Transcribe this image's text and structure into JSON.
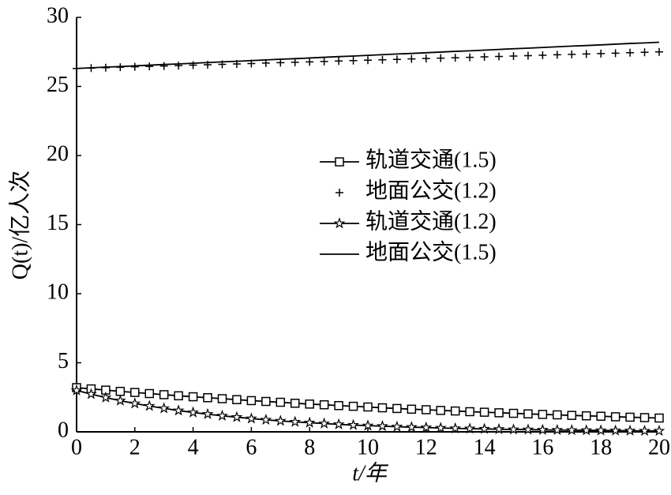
{
  "chart_data": {
    "type": "line",
    "x_label": "t/年",
    "y_label": "Q(t)/亿人次",
    "x": [
      0,
      0.5,
      1,
      1.5,
      2,
      2.5,
      3,
      3.5,
      4,
      4.5,
      5,
      5.5,
      6,
      6.5,
      7,
      7.5,
      8,
      8.5,
      9,
      9.5,
      10,
      10.5,
      11,
      11.5,
      12,
      12.5,
      13,
      13.5,
      14,
      14.5,
      15,
      15.5,
      16,
      16.5,
      17,
      17.5,
      18,
      18.5,
      19,
      19.5,
      20
    ],
    "series": [
      {
        "name": "轨道交通(1.5)",
        "color": "#000000",
        "marker": "square",
        "values": [
          3.2,
          3.11,
          3.02,
          2.93,
          2.85,
          2.77,
          2.69,
          2.61,
          2.54,
          2.47,
          2.4,
          2.33,
          2.26,
          2.2,
          2.14,
          2.07,
          2.01,
          1.96,
          1.9,
          1.85,
          1.8,
          1.74,
          1.69,
          1.64,
          1.6,
          1.55,
          1.51,
          1.46,
          1.42,
          1.38,
          1.34,
          1.3,
          1.26,
          1.23,
          1.19,
          1.16,
          1.13,
          1.09,
          1.06,
          1.03,
          1.0
        ]
      },
      {
        "name": "地面公交(1.2)",
        "color": "#000000",
        "marker": "plus",
        "values": [
          26.3,
          26.33,
          26.36,
          26.39,
          26.42,
          26.45,
          26.48,
          26.51,
          26.54,
          26.57,
          26.6,
          26.63,
          26.66,
          26.69,
          26.72,
          26.75,
          26.78,
          26.81,
          26.84,
          26.87,
          26.9,
          26.93,
          26.96,
          26.99,
          27.02,
          27.05,
          27.08,
          27.11,
          27.14,
          27.17,
          27.2,
          27.23,
          27.26,
          27.29,
          27.32,
          27.35,
          27.38,
          27.41,
          27.44,
          27.47,
          27.5
        ]
      },
      {
        "name": "轨道交通(1.2)",
        "color": "#000000",
        "marker": "star",
        "values": [
          3.0,
          2.73,
          2.48,
          2.26,
          2.05,
          1.87,
          1.7,
          1.54,
          1.4,
          1.28,
          1.16,
          1.06,
          0.96,
          0.87,
          0.79,
          0.72,
          0.66,
          0.6,
          0.54,
          0.49,
          0.45,
          0.41,
          0.37,
          0.34,
          0.31,
          0.28,
          0.25,
          0.23,
          0.21,
          0.19,
          0.17,
          0.16,
          0.14,
          0.13,
          0.12,
          0.11,
          0.1,
          0.09,
          0.08,
          0.07,
          0.07
        ]
      },
      {
        "name": "地面公交(1.5)",
        "color": "#000000",
        "marker": "none",
        "values": [
          26.3,
          26.35,
          26.4,
          26.44,
          26.49,
          26.54,
          26.59,
          26.63,
          26.68,
          26.73,
          26.78,
          26.82,
          26.87,
          26.92,
          26.97,
          27.01,
          27.06,
          27.11,
          27.16,
          27.2,
          27.25,
          27.3,
          27.35,
          27.39,
          27.44,
          27.49,
          27.54,
          27.58,
          27.63,
          27.68,
          27.73,
          27.77,
          27.82,
          27.87,
          27.92,
          27.96,
          28.01,
          28.06,
          28.11,
          28.15,
          28.2
        ]
      }
    ],
    "xlim": [
      0,
      20
    ],
    "xticks": [
      0,
      2,
      4,
      6,
      8,
      10,
      12,
      14,
      16,
      18,
      20
    ],
    "ylim": [
      0,
      30
    ],
    "yticks": [
      0,
      5,
      10,
      15,
      20,
      25,
      30
    ],
    "grid": false
  }
}
